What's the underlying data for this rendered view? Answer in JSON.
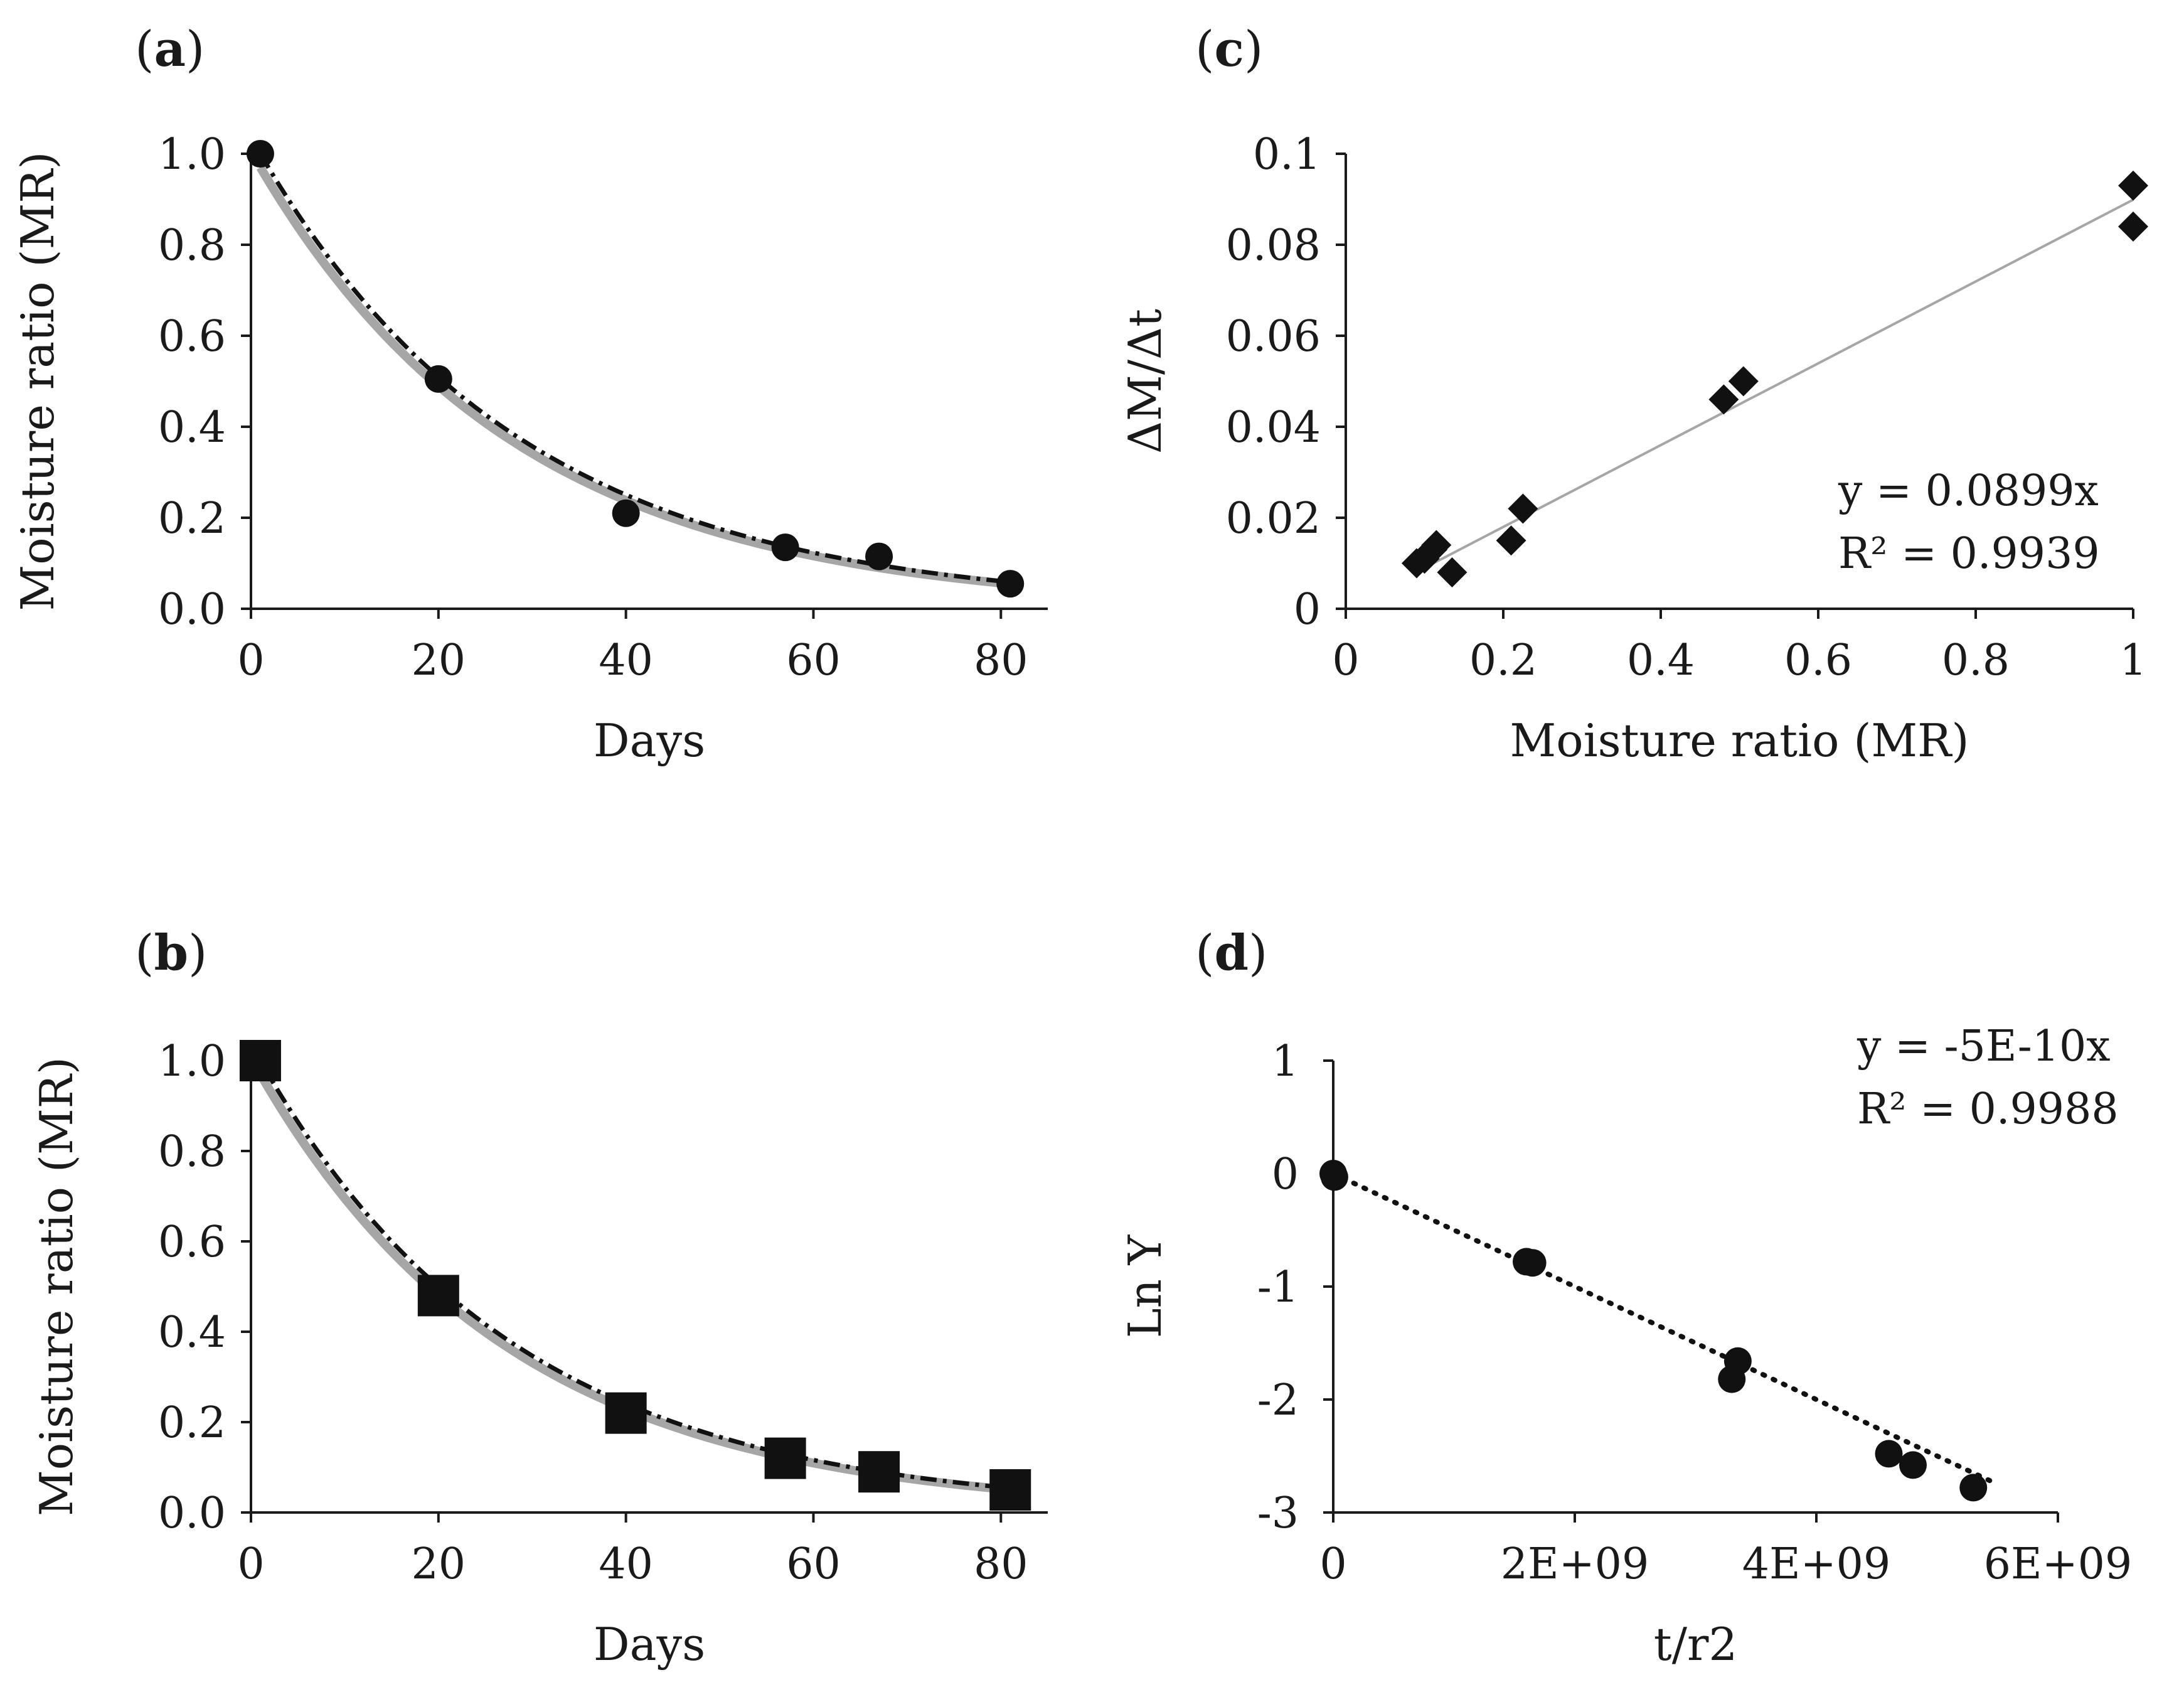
{
  "chart_data": [
    {
      "id": "a",
      "panel_label": "a",
      "type": "scatter",
      "xlabel": "Days",
      "ylabel": "Moisture ratio (MR)",
      "xlim": [
        0,
        85
      ],
      "ylim": [
        0,
        1.0
      ],
      "xticks": [
        "0",
        "20",
        "40",
        "60",
        "80"
      ],
      "yticks": [
        "0.0",
        "0.2",
        "0.4",
        "0.6",
        "0.8",
        "1.0"
      ],
      "marker": "circle",
      "points": {
        "x": [
          1,
          20,
          40,
          57,
          67,
          81
        ],
        "y": [
          1.0,
          0.505,
          0.21,
          0.135,
          0.115,
          0.055
        ]
      },
      "fitted_curves": [
        {
          "style": "gray-solid",
          "model": "exponential",
          "y0": 0.97,
          "k": 0.036
        },
        {
          "style": "black-dash-dot",
          "model": "exponential",
          "y0": 1.0,
          "k": 0.0355
        }
      ]
    },
    {
      "id": "b",
      "panel_label": "b",
      "type": "scatter",
      "xlabel": "Days",
      "ylabel": "Moisture ratio (MR)",
      "xlim": [
        0,
        85
      ],
      "ylim": [
        0,
        1.0
      ],
      "xticks": [
        "0",
        "20",
        "40",
        "60",
        "80"
      ],
      "yticks": [
        "0.0",
        "0.2",
        "0.4",
        "0.6",
        "0.8",
        "1.0"
      ],
      "marker": "square",
      "points": {
        "x": [
          1,
          20,
          40,
          57,
          67,
          81
        ],
        "y": [
          1.0,
          0.48,
          0.22,
          0.12,
          0.09,
          0.05
        ]
      },
      "fitted_curves": [
        {
          "style": "gray-solid",
          "model": "exponential",
          "y0": 0.97,
          "k": 0.037
        },
        {
          "style": "black-dash-dot",
          "model": "exponential",
          "y0": 1.0,
          "k": 0.0365
        }
      ]
    },
    {
      "id": "c",
      "panel_label": "c",
      "type": "scatter",
      "xlabel": "Moisture ratio (MR)",
      "ylabel": "ΔM/Δt",
      "xlim": [
        0,
        1
      ],
      "ylim": [
        0,
        0.1
      ],
      "xticks": [
        "0",
        "0.2",
        "0.4",
        "0.6",
        "0.8",
        "1"
      ],
      "yticks": [
        "0",
        "0.02",
        "0.04",
        "0.06",
        "0.08",
        "0.1"
      ],
      "marker": "diamond",
      "points": {
        "x": [
          0.09,
          0.1,
          0.11,
          0.115,
          0.135,
          0.21,
          0.225,
          0.48,
          0.505,
          1.0,
          1.0
        ],
        "y": [
          0.01,
          0.011,
          0.013,
          0.014,
          0.008,
          0.015,
          0.022,
          0.046,
          0.05,
          0.093,
          0.084
        ]
      },
      "trendline": {
        "style": "gray-solid",
        "slope": 0.0899,
        "intercept": 0,
        "x_range": [
          0.09,
          1.0
        ]
      },
      "equation": "y = 0.0899x",
      "r_squared": "R² = 0.9939"
    },
    {
      "id": "d",
      "panel_label": "d",
      "type": "scatter",
      "xlabel": "t/r2",
      "ylabel": "Ln Y",
      "xlim": [
        0,
        6000000000
      ],
      "ylim": [
        -3,
        1
      ],
      "xticks": [
        "0",
        "2E+09",
        "4E+09",
        "6E+09"
      ],
      "yticks": [
        "-3",
        "-2",
        "-1",
        "0",
        "1"
      ],
      "marker": "circle",
      "points": {
        "x": [
          0,
          10000000,
          1600000000,
          1650000000,
          3300000000,
          3350000000,
          4600000000,
          4800000000,
          5300000000
        ],
        "y": [
          0.0,
          -0.03,
          -0.78,
          -0.79,
          -1.82,
          -1.66,
          -2.48,
          -2.58,
          -2.78
        ]
      },
      "trendline": {
        "style": "black-dotted",
        "slope": -5e-10,
        "intercept": 0,
        "x_range": [
          0,
          5500000000
        ]
      },
      "equation": "y = -5E-10x",
      "r_squared": "R² = 0.9988"
    }
  ]
}
